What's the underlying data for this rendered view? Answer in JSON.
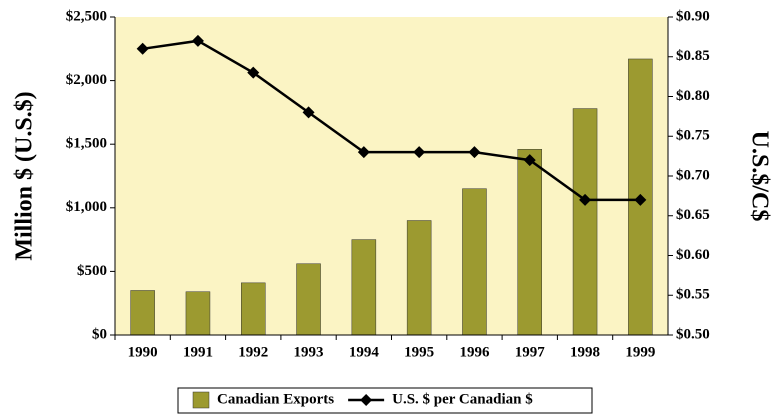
{
  "chart_data": {
    "type": "bar_line",
    "categories": [
      "1990",
      "1991",
      "1992",
      "1993",
      "1994",
      "1995",
      "1996",
      "1997",
      "1998",
      "1999"
    ],
    "y_label": "Million $ (U.S.$)",
    "y2_label": "U.S.$/C$",
    "series": [
      {
        "name": "Canadian Exports",
        "type": "bar",
        "color": "#9c9a30",
        "values": [
          350,
          340,
          410,
          560,
          750,
          900,
          1150,
          1460,
          1780,
          2170
        ]
      },
      {
        "name": "U.S. $ per Canadian $",
        "type": "line",
        "axis": "y2",
        "color": "#000000",
        "values": [
          0.86,
          0.87,
          0.83,
          0.78,
          0.73,
          0.73,
          0.73,
          0.72,
          0.67,
          0.67
        ]
      }
    ],
    "ylim": [
      0,
      2500
    ],
    "yticks": [
      {
        "value": 0,
        "label": "$0"
      },
      {
        "value": 500,
        "label": "$500"
      },
      {
        "value": 1000,
        "label": "$1,000"
      },
      {
        "value": 1500,
        "label": "$1,500"
      },
      {
        "value": 2000,
        "label": "$2,000"
      },
      {
        "value": 2500,
        "label": "$2,500"
      }
    ],
    "y2lim": [
      0.5,
      0.9
    ],
    "y2ticks": [
      {
        "value": 0.5,
        "label": "$0.50"
      },
      {
        "value": 0.55,
        "label": "$0.55"
      },
      {
        "value": 0.6,
        "label": "$0.60"
      },
      {
        "value": 0.65,
        "label": "$0.65"
      },
      {
        "value": 0.7,
        "label": "$0.70"
      },
      {
        "value": 0.75,
        "label": "$0.75"
      },
      {
        "value": 0.8,
        "label": "$0.80"
      },
      {
        "value": 0.85,
        "label": "$0.85"
      },
      {
        "value": 0.9,
        "label": "$0.90"
      }
    ],
    "plot_background": "#fbf4c4",
    "grid": false,
    "legend": "bottom"
  }
}
